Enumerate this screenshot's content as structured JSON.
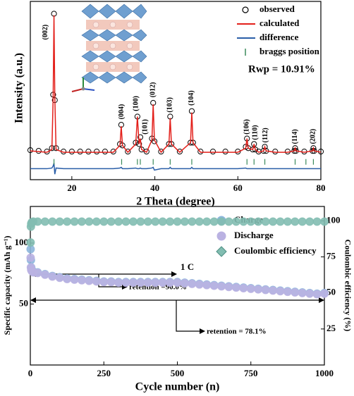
{
  "chart_data": [
    {
      "type": "line",
      "x_label": "2 Theta (degree)",
      "y_label": "Intensity (a.u.)",
      "x": [
        10,
        12,
        14,
        15.2,
        15.5,
        15.7,
        15.9,
        16.2,
        18,
        20,
        22,
        24,
        26,
        28,
        30,
        31.6,
        31.9,
        32.2,
        33.5,
        35.4,
        35.8,
        36.2,
        36.5,
        36.8,
        38,
        39.3,
        39.6,
        39.9,
        41.5,
        43.4,
        43.7,
        44,
        46,
        48.6,
        48.9,
        49.2,
        51,
        54,
        57,
        60,
        61.9,
        62.2,
        62.5,
        63.6,
        63.9,
        64.2,
        65,
        66.2,
        66.5,
        66.8,
        69,
        72,
        73.6,
        73.8,
        74,
        76,
        78,
        78.2,
        78.4,
        80
      ],
      "xlim": [
        10,
        80
      ],
      "xticks": [
        20,
        40,
        60,
        80
      ],
      "ylim": [
        -20,
        110
      ],
      "series": [
        {
          "name": "observed",
          "color": "#000000",
          "marker": "open-circle",
          "values": [
            1.5,
            1,
            0.5,
            3,
            42,
            101,
            38,
            3,
            0.5,
            0.5,
            0.5,
            0.5,
            0.5,
            0.5,
            0.5,
            6,
            20,
            5,
            0.5,
            7,
            26,
            6,
            11,
            2,
            0.5,
            10,
            36,
            8,
            0.5,
            6,
            26,
            6,
            0.5,
            7,
            30,
            7,
            0.5,
            0.5,
            0.5,
            0.5,
            4,
            10,
            3,
            2,
            6,
            2,
            0.5,
            1,
            4,
            1,
            0.5,
            0.5,
            1,
            3,
            1,
            0.5,
            1,
            3,
            1,
            0.5
          ]
        },
        {
          "name": "calculated",
          "color": "#e3201b",
          "values": [
            1,
            0.5,
            0,
            2,
            40,
            100,
            40,
            2,
            0,
            0,
            0,
            0,
            0,
            0,
            0,
            5,
            19,
            5,
            0,
            6,
            26,
            6,
            10,
            2,
            0,
            9,
            35,
            9,
            0,
            6,
            25,
            6,
            0,
            7,
            29,
            7,
            0,
            0,
            0,
            0,
            3,
            10,
            3,
            2,
            6,
            2,
            0,
            1,
            4,
            1,
            0,
            0,
            1,
            3,
            1,
            0,
            1,
            3,
            1,
            0
          ]
        },
        {
          "name": "difference",
          "color": "#2a5ea8",
          "values": [
            -12,
            -12,
            -12,
            -11.5,
            -10,
            -8,
            -16,
            -11.5,
            -12,
            -12,
            -12,
            -12,
            -12,
            -12,
            -12,
            -11.5,
            -11,
            -12,
            -12,
            -11.5,
            -12,
            -12,
            -11.5,
            -12,
            -12,
            -11.5,
            -11,
            -13,
            -12,
            -12,
            -11,
            -12,
            -12,
            -12,
            -11,
            -12,
            -12,
            -12,
            -12,
            -12,
            -11.5,
            -12,
            -12,
            -12,
            -12,
            -12,
            -12,
            -12,
            -12,
            -12,
            -12,
            -12,
            -12,
            -12,
            -12,
            -12,
            -12,
            -12,
            -12,
            -12
          ]
        }
      ],
      "bragg_positions": {
        "name": "braggs position",
        "color": "#3a8a5a",
        "x": [
          15.7,
          32,
          35.8,
          36.5,
          39.6,
          43.7,
          48.9,
          62.2,
          63.9,
          66.5,
          73.8,
          76.4,
          78.2
        ],
        "values": [
          -7,
          -7,
          -7,
          -7,
          -7,
          -7,
          -7,
          -7,
          -7,
          -7,
          -7,
          -7,
          -7
        ]
      },
      "peak_labels": [
        {
          "label": "(002)",
          "x": 13.7,
          "y": 82
        },
        {
          "label": "(004)",
          "x": 32,
          "y": 24
        },
        {
          "label": "(100)",
          "x": 35.5,
          "y": 30
        },
        {
          "label": "(101)",
          "x": 37.7,
          "y": 13
        },
        {
          "label": "(012)",
          "x": 39.6,
          "y": 40
        },
        {
          "label": "(103)",
          "x": 43.7,
          "y": 29
        },
        {
          "label": "(104)",
          "x": 48.9,
          "y": 34
        },
        {
          "label": "(106)",
          "x": 62.2,
          "y": 13
        },
        {
          "label": "(110)",
          "x": 64.2,
          "y": 9
        },
        {
          "label": "(112)",
          "x": 66.7,
          "y": 7
        },
        {
          "label": "(114)",
          "x": 73.8,
          "y": 6
        },
        {
          "label": "(202)",
          "x": 78.2,
          "y": 6
        }
      ],
      "annotation": "Rwp = 10.91%"
    },
    {
      "type": "scatter",
      "x_label": "Cycle number (n)",
      "y_label": "Specific capacity (mAh g⁻¹)",
      "y2_label": "Coulombic efficiency (%)",
      "x": [
        1,
        2,
        3,
        5,
        10,
        25,
        50,
        75,
        100,
        125,
        150,
        175,
        200,
        225,
        250,
        275,
        300,
        325,
        350,
        375,
        400,
        425,
        450,
        475,
        500,
        525,
        550,
        575,
        600,
        625,
        650,
        675,
        700,
        725,
        750,
        775,
        800,
        825,
        850,
        875,
        900,
        925,
        950,
        975,
        1000
      ],
      "xlim": [
        0,
        1000
      ],
      "xticks": [
        0,
        250,
        500,
        750,
        1000
      ],
      "ylim": [
        0,
        130
      ],
      "yticks": [
        50,
        100
      ],
      "y2lim": [
        0,
        110
      ],
      "y2ticks": [
        25,
        50,
        75,
        100
      ],
      "series": [
        {
          "name": "Charge",
          "color": "#8db6dc",
          "values": [
            95,
            86,
            80,
            78,
            76.5,
            76,
            74.5,
            73,
            72,
            71,
            70.5,
            70,
            69.5,
            69,
            68.5,
            68.5,
            68,
            68,
            68,
            68,
            68,
            68,
            68,
            68,
            68,
            67.5,
            67,
            66.5,
            66,
            65.5,
            65,
            64.5,
            64,
            63.5,
            63,
            62.5,
            62,
            61.5,
            61,
            60.5,
            60,
            59.5,
            59,
            58.5,
            59
          ]
        },
        {
          "name": "Discharge",
          "color": "#bab2e2",
          "values": [
            88,
            80,
            78,
            77,
            76,
            75.5,
            74,
            72.5,
            71.5,
            70.5,
            70,
            69.5,
            69,
            68.5,
            68,
            68,
            67.5,
            67.5,
            67.5,
            67.5,
            67.5,
            67.5,
            67.5,
            67.5,
            67.5,
            67,
            66.5,
            66,
            65.5,
            65,
            64.5,
            64,
            63.5,
            63,
            62.5,
            62,
            61.5,
            61,
            60.5,
            60,
            59.5,
            59,
            58.5,
            58,
            58.5
          ]
        },
        {
          "name": "Coulombic efficiency",
          "color": "#82bdb1",
          "axis": "y2",
          "values": [
            85,
            96,
            98,
            99,
            99.5,
            99.5,
            99.5,
            99.5,
            99.5,
            99.5,
            99.5,
            99.5,
            99.5,
            99.5,
            99.5,
            99.5,
            99.5,
            99.5,
            99.5,
            99.5,
            99.5,
            99.5,
            99.5,
            99.5,
            99.5,
            99.5,
            99.5,
            99.5,
            99.5,
            99.5,
            99.5,
            99.5,
            99.5,
            99.5,
            99.5,
            99.5,
            99.5,
            99.5,
            99.5,
            99.5,
            99.5,
            99.5,
            99.5,
            99.5,
            99.5
          ]
        }
      ],
      "annotations": [
        "1 C",
        "retention =90.0%",
        "retention = 78.1%"
      ]
    }
  ]
}
